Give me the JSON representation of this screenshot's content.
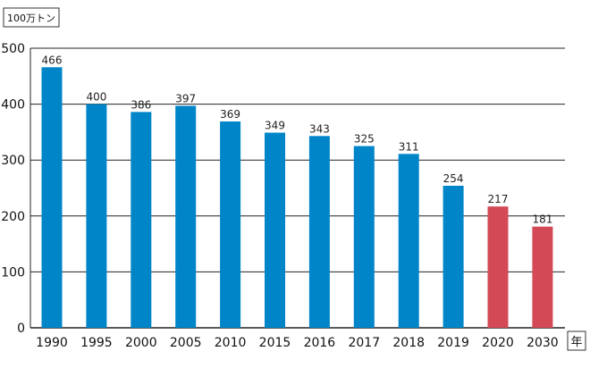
{
  "chart_data": {
    "type": "bar",
    "unit_label": "100万トン",
    "x_unit_label": "年",
    "categories": [
      "1990",
      "1995",
      "2000",
      "2005",
      "2010",
      "2015",
      "2016",
      "2017",
      "2018",
      "2019",
      "2020",
      "2030"
    ],
    "values": [
      466,
      400,
      386,
      397,
      369,
      349,
      343,
      325,
      311,
      254,
      217,
      181
    ],
    "data_labels": [
      "466",
      "400",
      "386",
      "397",
      "369",
      "349",
      "343",
      "325",
      "311",
      "254",
      "217",
      "181"
    ],
    "y_ticks": [
      "0",
      "100",
      "200",
      "300",
      "400",
      "500"
    ],
    "ylim": [
      0,
      500
    ],
    "grid": true,
    "colors": {
      "bar": "#0085c9",
      "bar_highlight": "#d34a56",
      "grid": "#222222"
    },
    "highlighted_categories": [
      "2020",
      "2030"
    ]
  }
}
